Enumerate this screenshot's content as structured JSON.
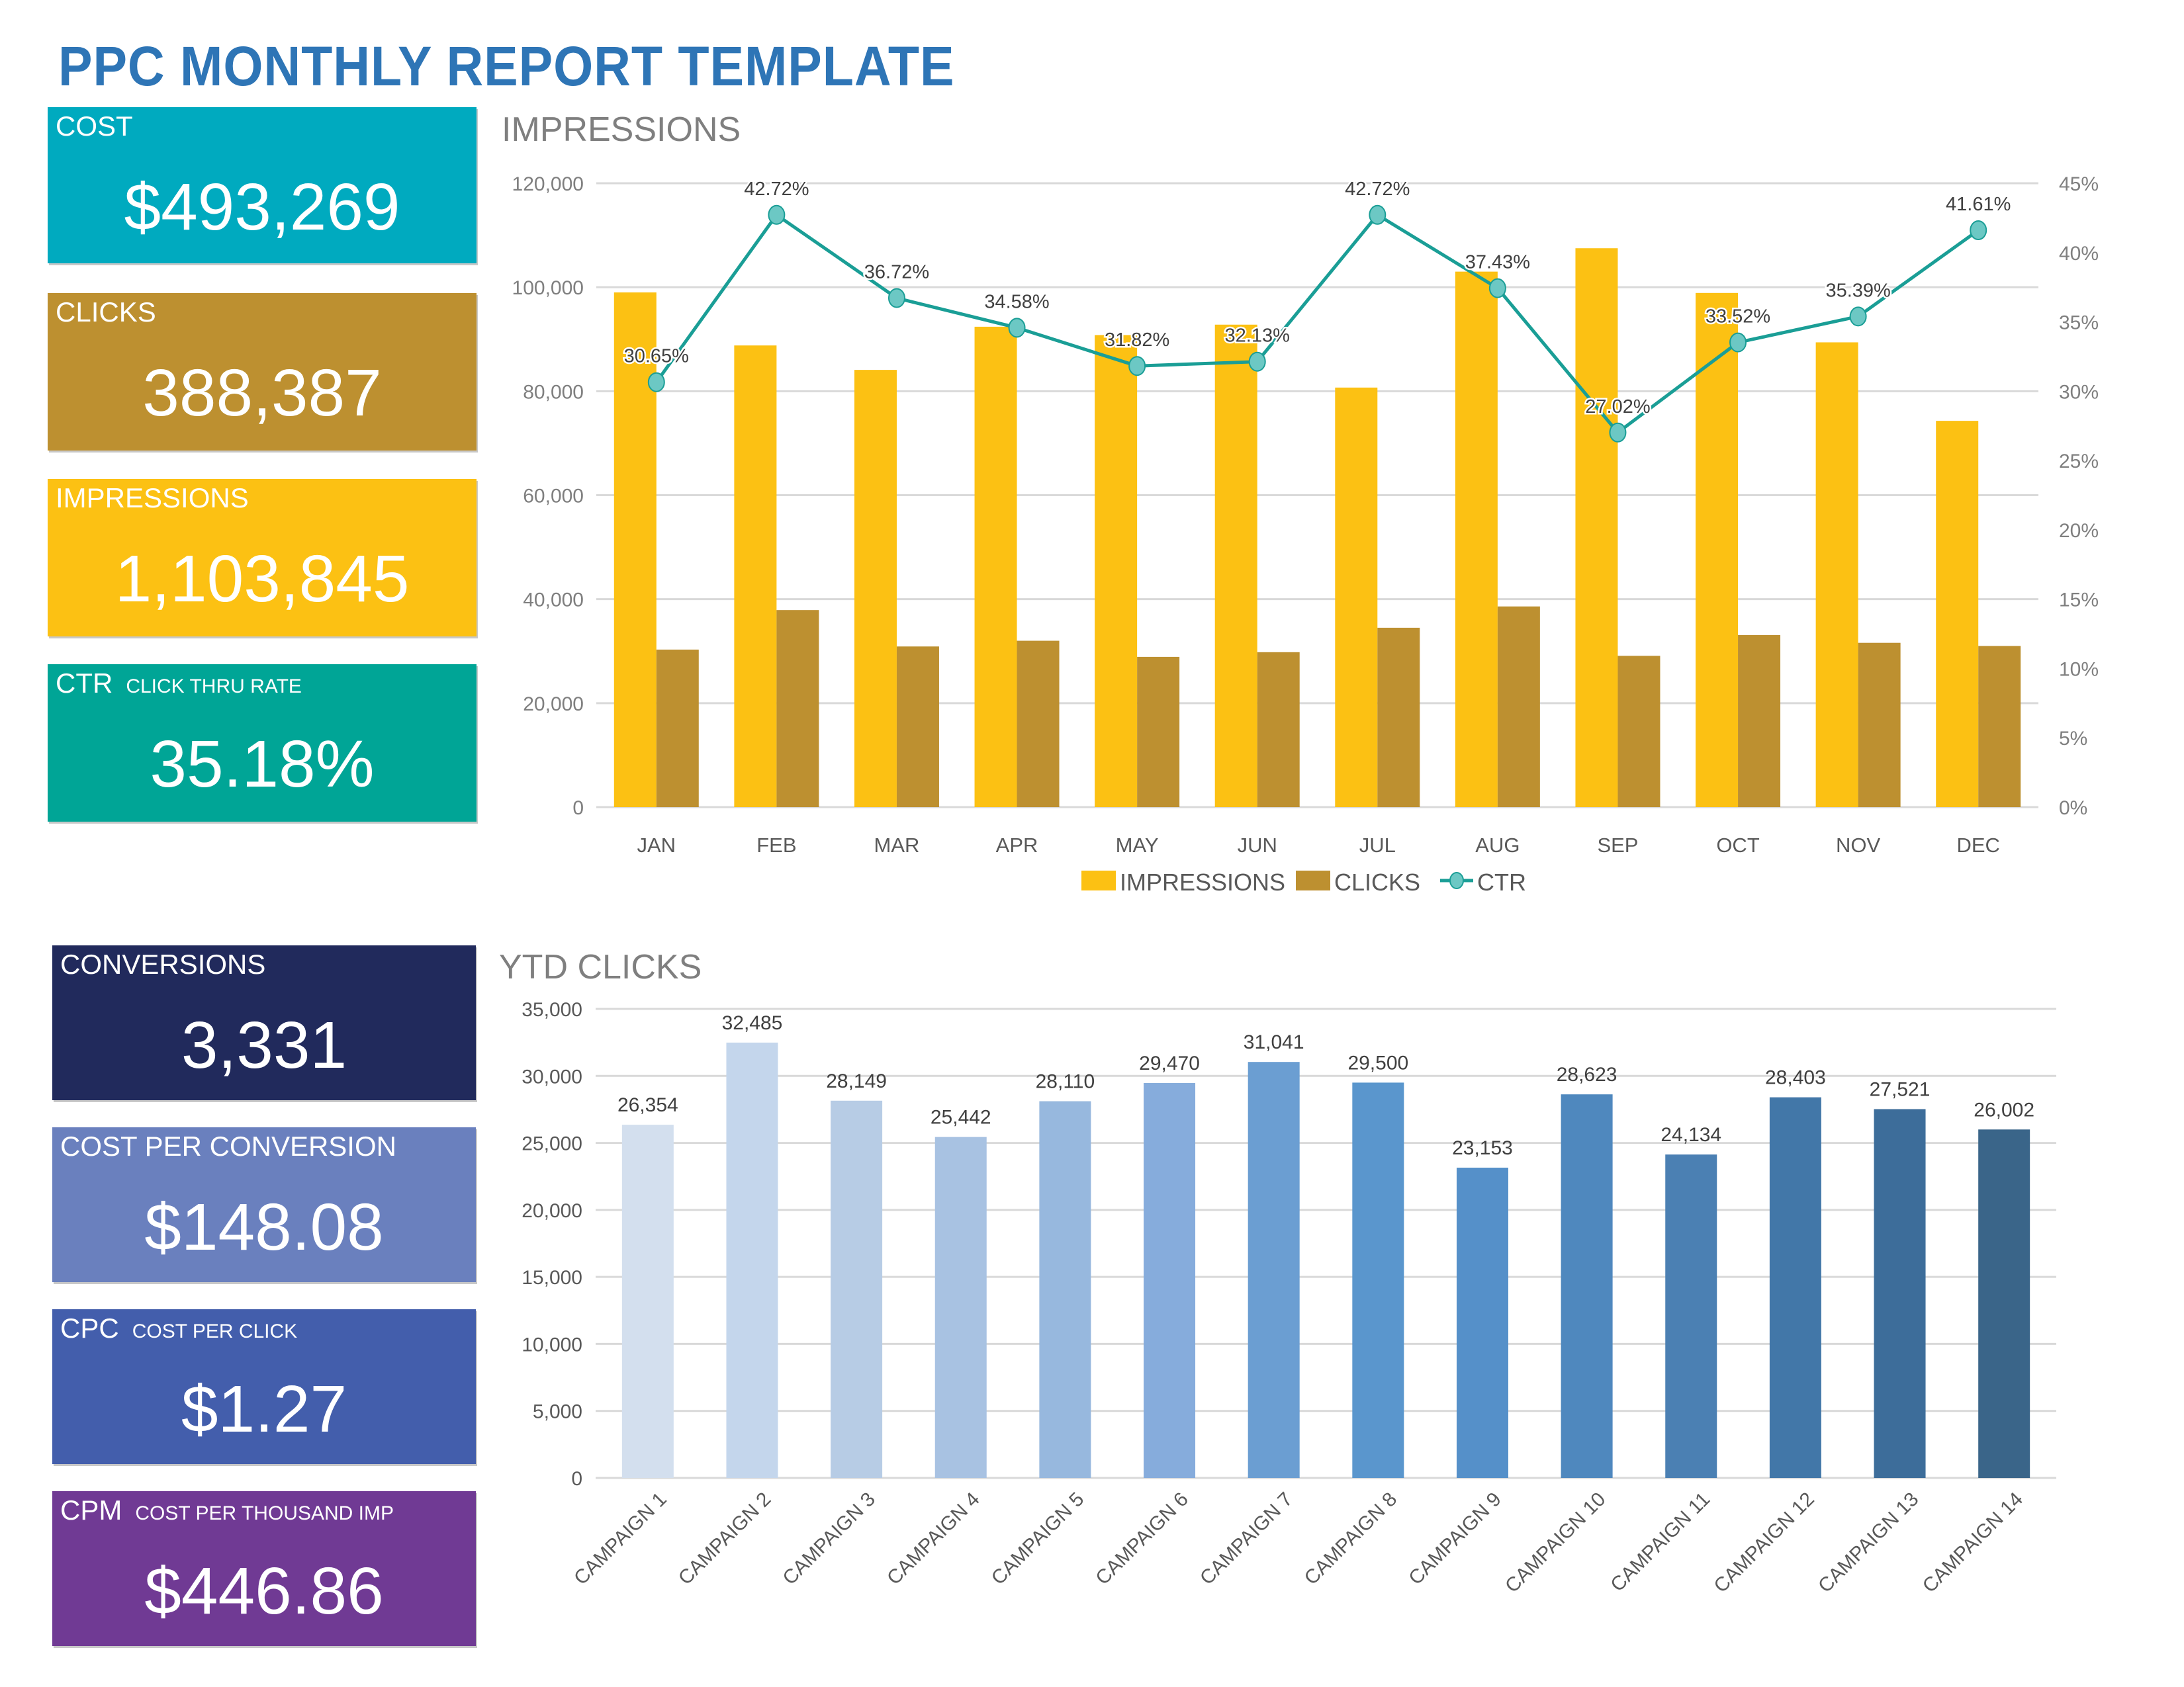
{
  "page": {
    "title": "PPC MONTHLY REPORT TEMPLATE"
  },
  "kpis_top": [
    {
      "label": "COST",
      "sublabel": "",
      "value": "$493,269",
      "color": "#00aabf"
    },
    {
      "label": "CLICKS",
      "sublabel": "",
      "value": "388,387",
      "color": "#bd9030"
    },
    {
      "label": "IMPRESSIONS",
      "sublabel": "",
      "value": "1,103,845",
      "color": "#fcc113"
    },
    {
      "label": "CTR",
      "sublabel": "CLICK THRU RATE",
      "value": "35.18%",
      "color": "#00a596"
    }
  ],
  "kpis_bottom": [
    {
      "label": "CONVERSIONS",
      "sublabel": "",
      "value": "3,331",
      "color": "#212a5c"
    },
    {
      "label": "COST PER CONVERSION",
      "sublabel": "",
      "value": "$148.08",
      "color": "#6a80be"
    },
    {
      "label": "CPC",
      "sublabel": "COST PER CLICK",
      "value": "$1.27",
      "color": "#435eac"
    },
    {
      "label": "CPM",
      "sublabel": "COST PER THOUSAND IMP",
      "value": "$446.86",
      "color": "#703a94"
    }
  ],
  "chart_data": [
    {
      "type": "bar+line",
      "title": "IMPRESSIONS",
      "categories": [
        "JAN",
        "FEB",
        "MAR",
        "APR",
        "MAY",
        "JUN",
        "JUL",
        "AUG",
        "SEP",
        "OCT",
        "NOV",
        "DEC"
      ],
      "series": [
        {
          "name": "IMPRESSIONS",
          "type": "bar",
          "axis": "left",
          "color": "#fcc113",
          "values": [
            99000,
            88800,
            84100,
            92400,
            90800,
            92800,
            80700,
            103000,
            107500,
            98900,
            89400,
            74300
          ]
        },
        {
          "name": "CLICKS",
          "type": "bar",
          "axis": "left",
          "color": "#bd9030",
          "values": [
            30300,
            37900,
            30900,
            32000,
            28900,
            29800,
            34500,
            38600,
            29100,
            33100,
            31600,
            31000
          ]
        },
        {
          "name": "CTR",
          "type": "line",
          "axis": "right",
          "color": "#1a9e96",
          "marker_color": "#6cc8c4",
          "values": [
            30.65,
            42.72,
            36.72,
            34.58,
            31.82,
            32.13,
            42.72,
            37.43,
            27.02,
            33.52,
            35.39,
            41.61
          ],
          "labels": [
            "30.65%",
            "42.72%",
            "36.72%",
            "34.58%",
            "31.82%",
            "32.13%",
            "42.72%",
            "37.43%",
            "27.02%",
            "33.52%",
            "35.39%",
            "41.61%"
          ]
        }
      ],
      "y_left": {
        "ylim": [
          0,
          120000
        ],
        "ticks": [
          0,
          20000,
          40000,
          60000,
          80000,
          100000,
          120000
        ],
        "tick_labels": [
          "0",
          "20,000",
          "40,000",
          "60,000",
          "80,000",
          "100,000",
          "120,000"
        ]
      },
      "y_right": {
        "ylim": [
          0,
          45
        ],
        "ticks": [
          0,
          5,
          10,
          15,
          20,
          25,
          30,
          35,
          40,
          45
        ],
        "tick_labels": [
          "0%",
          "5%",
          "10%",
          "15%",
          "20%",
          "25%",
          "30%",
          "35%",
          "40%",
          "45%"
        ]
      },
      "grid": true,
      "legend": {
        "position": "bottom",
        "entries": [
          "IMPRESSIONS",
          "CLICKS",
          "CTR"
        ]
      }
    },
    {
      "type": "bar",
      "title": "YTD CLICKS",
      "categories": [
        "CAMPAIGN 1",
        "CAMPAIGN 2",
        "CAMPAIGN 3",
        "CAMPAIGN 4",
        "CAMPAIGN 5",
        "CAMPAIGN 6",
        "CAMPAIGN 7",
        "CAMPAIGN 8",
        "CAMPAIGN 9",
        "CAMPAIGN 10",
        "CAMPAIGN 11",
        "CAMPAIGN 12",
        "CAMPAIGN 13",
        "CAMPAIGN 14"
      ],
      "values": [
        26354,
        32485,
        28149,
        25442,
        28110,
        29470,
        31041,
        29500,
        23153,
        28623,
        24134,
        28403,
        27521,
        26002
      ],
      "value_labels": [
        "26,354",
        "32,485",
        "28,149",
        "25,442",
        "28,110",
        "29,470",
        "31,041",
        "29,500",
        "23,153",
        "28,623",
        "24,134",
        "28,403",
        "27,521",
        "26,002"
      ],
      "colors": [
        "#d3dfee",
        "#c4d6ec",
        "#b7cce5",
        "#a8c2e2",
        "#97b8de",
        "#86acdc",
        "#6b9ed2",
        "#5a96cd",
        "#5590c9",
        "#4f88be",
        "#4b80b3",
        "#4277a8",
        "#3d6d9a",
        "#3a6589"
      ],
      "ylim": [
        0,
        35000
      ],
      "ticks": [
        0,
        5000,
        10000,
        15000,
        20000,
        25000,
        30000,
        35000
      ],
      "tick_labels": [
        "0",
        "5,000",
        "10,000",
        "15,000",
        "20,000",
        "25,000",
        "30,000",
        "35,000"
      ],
      "grid": true,
      "xlabel": "",
      "ylabel": ""
    }
  ]
}
